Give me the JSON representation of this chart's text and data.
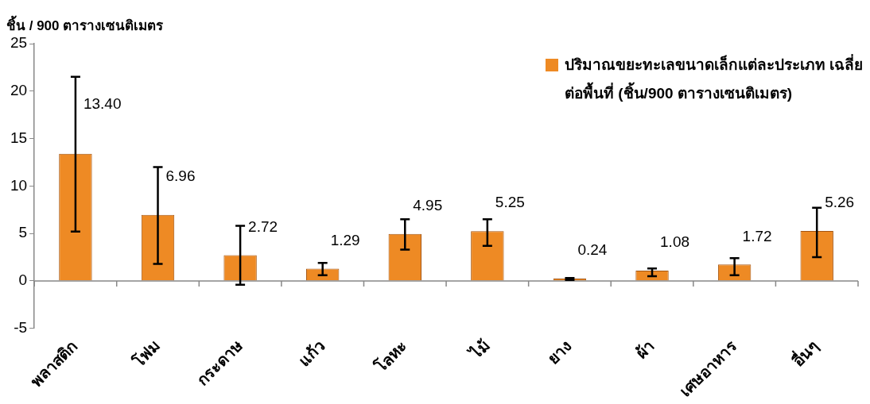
{
  "chart_data": {
    "type": "bar",
    "ylabel": "ชิ้น / 900 ตารางเซนติเมตร",
    "categories": [
      "พลาสติก",
      "โฟม",
      "กระดาษ",
      "แก้ว",
      "โลหะ",
      "ไม้",
      "ยาง",
      "ผ้า",
      "เศษอาหาร",
      "อื่นๆ"
    ],
    "series": [
      {
        "name": "ปริมาณขยะทะเลขนาดเล็กแต่ละประเภท เฉลี่ยต่อพื้นที่ (ชิ้น/900 ตารางเซนติเมตร)",
        "color": "#ee8a24",
        "values": [
          13.4,
          6.96,
          2.72,
          1.29,
          4.95,
          5.25,
          0.24,
          1.08,
          1.72,
          5.26
        ],
        "value_labels": [
          "13.40",
          "6.96",
          "2.72",
          "1.29",
          "4.95",
          "5.25",
          "0.24",
          "1.08",
          "1.72",
          "5.26"
        ],
        "errors": [
          [
            5.2,
            21.5
          ],
          [
            1.8,
            12.0
          ],
          [
            -0.4,
            5.8
          ],
          [
            0.6,
            1.9
          ],
          [
            3.3,
            6.5
          ],
          [
            3.7,
            6.5
          ],
          [
            0.1,
            0.3
          ],
          [
            0.5,
            1.3
          ],
          [
            0.6,
            2.4
          ],
          [
            2.5,
            7.7
          ]
        ]
      }
    ],
    "ylim": [
      -5,
      25
    ],
    "yticks": [
      -5,
      0,
      5,
      10,
      15,
      20,
      25
    ],
    "legend": "top right"
  }
}
